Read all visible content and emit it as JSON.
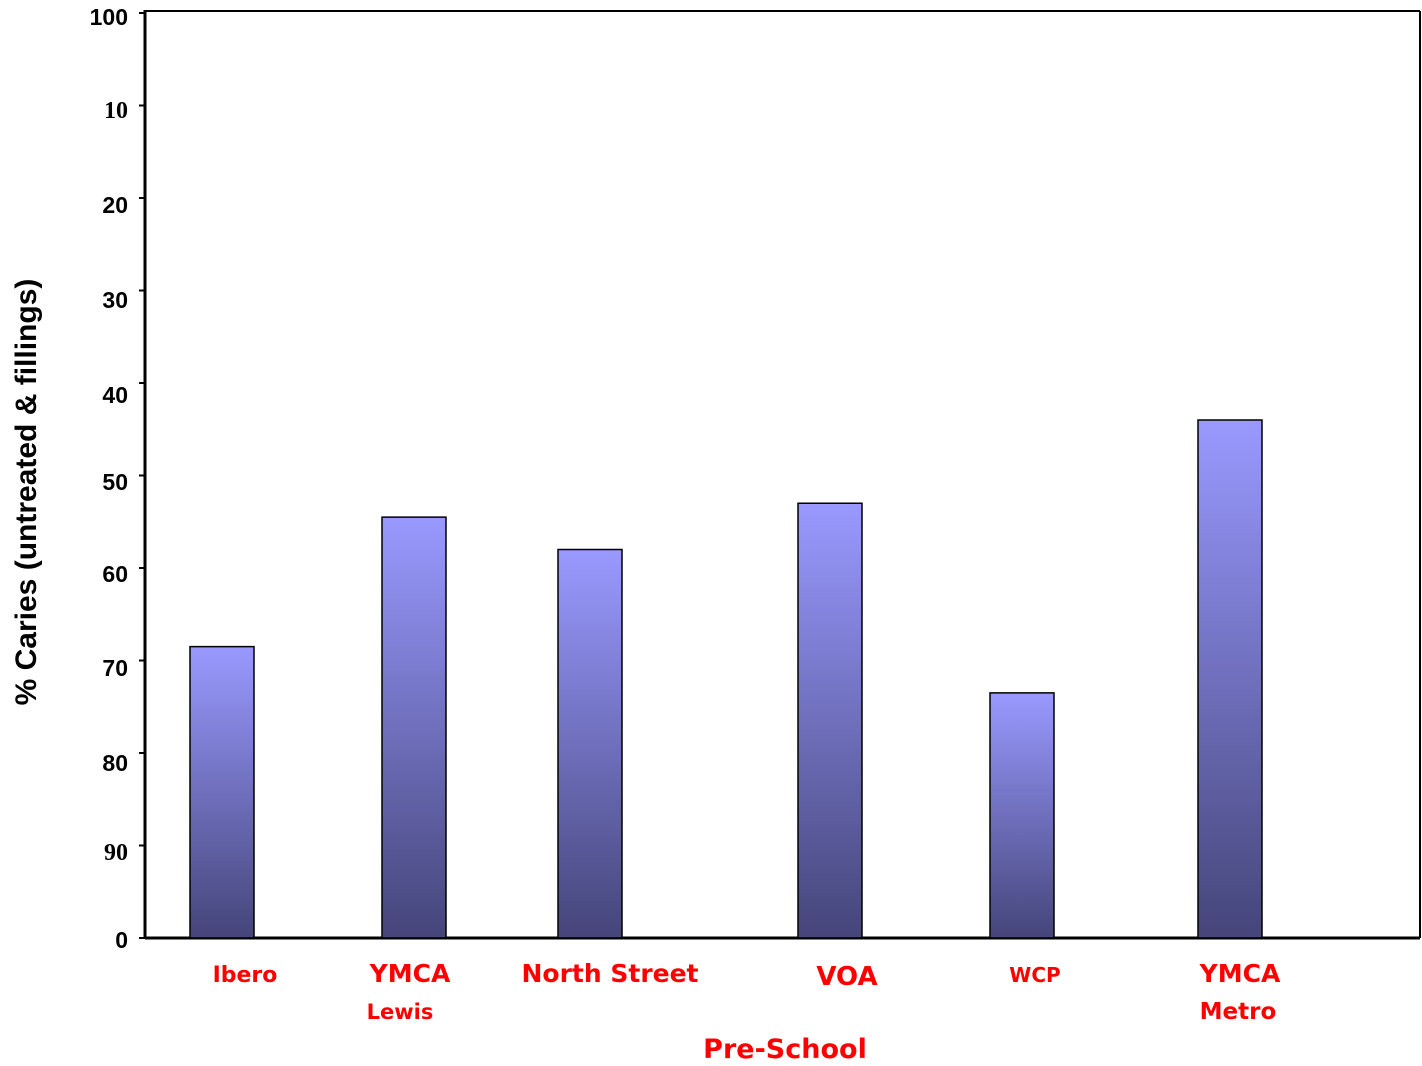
{
  "chart_data": {
    "type": "bar",
    "title": "",
    "xlabel": "Pre-School",
    "ylabel": "% Caries (untreated & fillings)",
    "ylim": [
      0,
      100
    ],
    "yticks": [
      {
        "value": 0,
        "label": "0"
      },
      {
        "value": 10,
        "label": "10"
      },
      {
        "value": 20,
        "label": "20"
      },
      {
        "value": 30,
        "label": "30"
      },
      {
        "value": 40,
        "label": "40"
      },
      {
        "value": 50,
        "label": "50"
      },
      {
        "value": 60,
        "label": "60"
      },
      {
        "value": 70,
        "label": "70"
      },
      {
        "value": 80,
        "label": "80"
      },
      {
        "value": 90,
        "label": "90"
      },
      {
        "value": 100,
        "label": "100"
      }
    ],
    "categories": [
      {
        "line1": "Ibero",
        "line2": ""
      },
      {
        "line1": "YMCA",
        "line2": "Lewis"
      },
      {
        "line1": "North Street",
        "line2": ""
      },
      {
        "line1": "VOA",
        "line2": ""
      },
      {
        "line1": "WCP",
        "line2": ""
      },
      {
        "line1": "YMCA",
        "line2": "Metro"
      }
    ],
    "values": [
      31.5,
      45.5,
      42,
      47,
      26.5,
      56
    ],
    "grid": false,
    "legend": "none",
    "colors": {
      "bar_top": "#9999ff",
      "bar_bottom": "#45457a",
      "bar_outline": "#000000",
      "label_color": "#ff0000",
      "axis_color": "#000000"
    }
  }
}
